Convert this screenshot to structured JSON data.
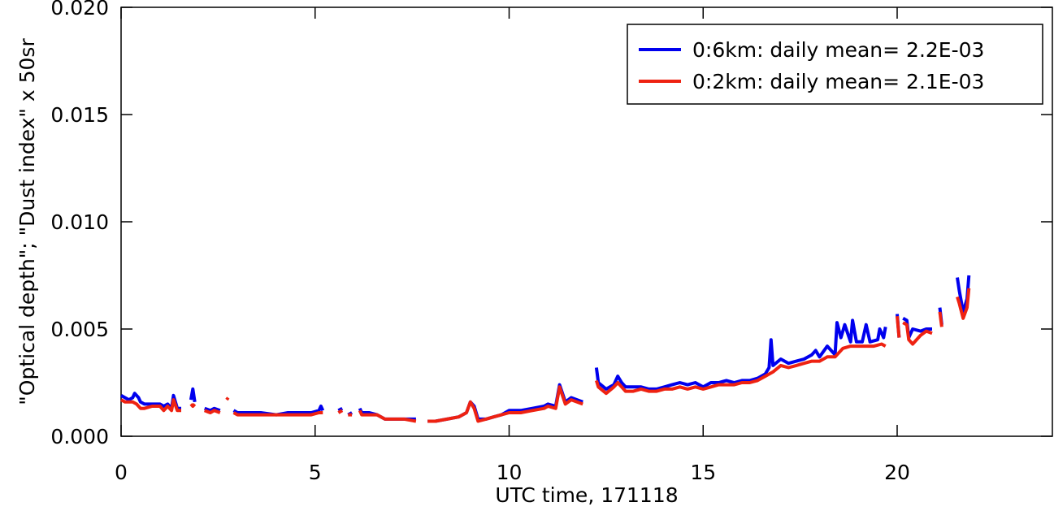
{
  "chart_data": {
    "type": "line",
    "title": "",
    "xlabel": "UTC time, 171118",
    "ylabel": "\"Optical depth\"; \"Dust index\" x 50sr",
    "xlim": [
      0,
      24
    ],
    "ylim": [
      0.0,
      0.02
    ],
    "x_ticks": [
      0,
      5,
      10,
      15,
      20
    ],
    "x_tick_labels": [
      "0",
      "5",
      "10",
      "15",
      "20"
    ],
    "y_ticks": [
      0.0,
      0.005,
      0.01,
      0.015,
      0.02
    ],
    "y_tick_labels": [
      "0.000",
      "0.005",
      "0.010",
      "0.015",
      "0.020"
    ],
    "grid": false,
    "legend_position": "top-right",
    "series": [
      {
        "name": "0:6km: daily mean= 2.2E-03",
        "color": "#0000ee",
        "segments": [
          [
            [
              0.0,
              0.0019
            ],
            [
              0.1,
              0.0018
            ],
            [
              0.2,
              0.0017
            ],
            [
              0.3,
              0.0018
            ],
            [
              0.35,
              0.002
            ],
            [
              0.45,
              0.0018
            ],
            [
              0.5,
              0.0016
            ],
            [
              0.6,
              0.0015
            ],
            [
              0.8,
              0.0015
            ],
            [
              1.0,
              0.0015
            ],
            [
              1.1,
              0.0014
            ],
            [
              1.2,
              0.0015
            ],
            [
              1.3,
              0.0013
            ],
            [
              1.35,
              0.0019
            ],
            [
              1.45,
              0.0013
            ],
            [
              1.55,
              0.0013
            ]
          ],
          [
            [
              1.8,
              0.0017
            ],
            [
              1.85,
              0.0022
            ],
            [
              1.9,
              0.0016
            ]
          ],
          [
            [
              2.15,
              0.0013
            ],
            [
              2.3,
              0.0012
            ],
            [
              2.4,
              0.0013
            ],
            [
              2.55,
              0.0012
            ]
          ],
          [
            [
              2.9,
              0.0012
            ],
            [
              3.0,
              0.0011
            ],
            [
              3.3,
              0.0011
            ],
            [
              3.6,
              0.0011
            ],
            [
              4.0,
              0.001
            ],
            [
              4.3,
              0.0011
            ],
            [
              4.6,
              0.0011
            ],
            [
              4.9,
              0.0011
            ],
            [
              5.1,
              0.0012
            ],
            [
              5.15,
              0.0014
            ],
            [
              5.2,
              0.0012
            ]
          ],
          [
            [
              5.6,
              0.0012
            ],
            [
              5.7,
              0.0013
            ]
          ],
          [
            [
              5.85,
              0.001
            ],
            [
              5.95,
              0.0011
            ]
          ],
          [
            [
              6.15,
              0.0013
            ],
            [
              6.2,
              0.0011
            ],
            [
              6.4,
              0.0011
            ],
            [
              6.6,
              0.001
            ],
            [
              6.8,
              0.0008
            ],
            [
              7.0,
              0.0008
            ],
            [
              7.3,
              0.0008
            ],
            [
              7.6,
              0.0008
            ]
          ],
          [
            [
              7.9,
              0.0007
            ],
            [
              8.1,
              0.0007
            ],
            [
              8.4,
              0.0008
            ],
            [
              8.7,
              0.0009
            ],
            [
              8.9,
              0.0011
            ],
            [
              9.0,
              0.0016
            ],
            [
              9.1,
              0.0014
            ],
            [
              9.2,
              0.0008
            ],
            [
              9.4,
              0.0008
            ],
            [
              9.6,
              0.0009
            ],
            [
              9.8,
              0.001
            ],
            [
              10.0,
              0.0012
            ],
            [
              10.3,
              0.0012
            ],
            [
              10.6,
              0.0013
            ],
            [
              10.9,
              0.0014
            ],
            [
              11.0,
              0.0015
            ],
            [
              11.2,
              0.0014
            ],
            [
              11.3,
              0.0024
            ],
            [
              11.45,
              0.0016
            ],
            [
              11.6,
              0.0018
            ],
            [
              11.9,
              0.0016
            ]
          ],
          [
            [
              12.25,
              0.0032
            ],
            [
              12.3,
              0.0025
            ],
            [
              12.5,
              0.0022
            ],
            [
              12.7,
              0.0024
            ],
            [
              12.8,
              0.0028
            ],
            [
              12.9,
              0.0025
            ],
            [
              13.0,
              0.0023
            ],
            [
              13.2,
              0.0023
            ],
            [
              13.4,
              0.0023
            ],
            [
              13.6,
              0.0022
            ],
            [
              13.8,
              0.0022
            ],
            [
              14.0,
              0.0023
            ],
            [
              14.2,
              0.0024
            ],
            [
              14.4,
              0.0025
            ],
            [
              14.6,
              0.0024
            ],
            [
              14.8,
              0.0025
            ],
            [
              15.0,
              0.0023
            ],
            [
              15.2,
              0.0025
            ],
            [
              15.4,
              0.0025
            ],
            [
              15.6,
              0.0026
            ],
            [
              15.8,
              0.0025
            ],
            [
              16.0,
              0.0026
            ],
            [
              16.2,
              0.0026
            ],
            [
              16.4,
              0.0027
            ],
            [
              16.6,
              0.0029
            ],
            [
              16.7,
              0.0032
            ],
            [
              16.75,
              0.0045
            ],
            [
              16.8,
              0.0033
            ],
            [
              17.0,
              0.0036
            ],
            [
              17.2,
              0.0034
            ],
            [
              17.4,
              0.0035
            ],
            [
              17.6,
              0.0036
            ],
            [
              17.8,
              0.0038
            ],
            [
              17.9,
              0.004
            ],
            [
              18.0,
              0.0037
            ],
            [
              18.2,
              0.0042
            ],
            [
              18.4,
              0.0038
            ],
            [
              18.45,
              0.0053
            ],
            [
              18.55,
              0.0046
            ],
            [
              18.65,
              0.0052
            ],
            [
              18.8,
              0.0044
            ],
            [
              18.85,
              0.0054
            ],
            [
              18.95,
              0.0044
            ],
            [
              19.1,
              0.0044
            ],
            [
              19.2,
              0.0052
            ],
            [
              19.3,
              0.0044
            ],
            [
              19.5,
              0.0045
            ],
            [
              19.55,
              0.005
            ],
            [
              19.65,
              0.0046
            ],
            [
              19.7,
              0.0051
            ]
          ],
          [
            [
              20.0,
              0.0057
            ],
            [
              20.05,
              0.0046
            ]
          ],
          [
            [
              20.15,
              0.0055
            ],
            [
              20.25,
              0.0054
            ],
            [
              20.3,
              0.0046
            ],
            [
              20.4,
              0.005
            ],
            [
              20.6,
              0.0049
            ],
            [
              20.75,
              0.005
            ],
            [
              20.9,
              0.005
            ]
          ],
          [
            [
              21.1,
              0.006
            ],
            [
              21.15,
              0.0052
            ]
          ],
          [
            [
              21.55,
              0.0074
            ],
            [
              21.6,
              0.0068
            ],
            [
              21.7,
              0.0058
            ],
            [
              21.8,
              0.0064
            ],
            [
              21.85,
              0.0075
            ]
          ]
        ]
      },
      {
        "name": "0:2km: daily mean= 2.1E-03",
        "color": "#ee2211",
        "segments": [
          [
            [
              0.0,
              0.0017
            ],
            [
              0.1,
              0.0016
            ],
            [
              0.2,
              0.0016
            ],
            [
              0.3,
              0.0016
            ],
            [
              0.4,
              0.0015
            ],
            [
              0.5,
              0.0013
            ],
            [
              0.6,
              0.0013
            ],
            [
              0.8,
              0.0014
            ],
            [
              1.0,
              0.0014
            ],
            [
              1.1,
              0.0012
            ],
            [
              1.2,
              0.0014
            ],
            [
              1.3,
              0.0012
            ],
            [
              1.35,
              0.0017
            ],
            [
              1.45,
              0.0012
            ],
            [
              1.55,
              0.0012
            ]
          ],
          [
            [
              1.8,
              0.0015
            ],
            [
              1.85,
              0.0014
            ],
            [
              1.9,
              0.0015
            ]
          ],
          [
            [
              2.15,
              0.0012
            ],
            [
              2.3,
              0.0011
            ],
            [
              2.4,
              0.0012
            ],
            [
              2.55,
              0.0011
            ]
          ],
          [
            [
              2.72,
              0.0017
            ],
            [
              2.76,
              0.0018
            ]
          ],
          [
            [
              2.9,
              0.0011
            ],
            [
              3.0,
              0.001
            ],
            [
              3.3,
              0.001
            ],
            [
              3.6,
              0.001
            ],
            [
              4.0,
              0.001
            ],
            [
              4.3,
              0.001
            ],
            [
              4.6,
              0.001
            ],
            [
              4.9,
              0.001
            ],
            [
              5.1,
              0.0011
            ],
            [
              5.2,
              0.0011
            ]
          ],
          [
            [
              5.6,
              0.0011
            ],
            [
              5.7,
              0.0012
            ]
          ],
          [
            [
              5.85,
              0.001
            ],
            [
              5.95,
              0.001
            ]
          ],
          [
            [
              6.15,
              0.0012
            ],
            [
              6.2,
              0.001
            ],
            [
              6.4,
              0.001
            ],
            [
              6.6,
              0.001
            ],
            [
              6.8,
              0.0008
            ],
            [
              7.0,
              0.0008
            ],
            [
              7.3,
              0.0008
            ],
            [
              7.6,
              0.0007
            ]
          ],
          [
            [
              7.9,
              0.0007
            ],
            [
              8.1,
              0.0007
            ],
            [
              8.4,
              0.0008
            ],
            [
              8.7,
              0.0009
            ],
            [
              8.9,
              0.0011
            ],
            [
              9.0,
              0.0016
            ],
            [
              9.1,
              0.0013
            ],
            [
              9.2,
              0.0007
            ],
            [
              9.4,
              0.0008
            ],
            [
              9.6,
              0.0009
            ],
            [
              9.8,
              0.001
            ],
            [
              10.0,
              0.0011
            ],
            [
              10.3,
              0.0011
            ],
            [
              10.6,
              0.0012
            ],
            [
              10.9,
              0.0013
            ],
            [
              11.0,
              0.0014
            ],
            [
              11.2,
              0.0013
            ],
            [
              11.3,
              0.0023
            ],
            [
              11.45,
              0.0015
            ],
            [
              11.6,
              0.0017
            ],
            [
              11.9,
              0.0015
            ]
          ],
          [
            [
              12.25,
              0.0026
            ],
            [
              12.3,
              0.0023
            ],
            [
              12.5,
              0.002
            ],
            [
              12.7,
              0.0023
            ],
            [
              12.8,
              0.0025
            ],
            [
              12.9,
              0.0023
            ],
            [
              13.0,
              0.0021
            ],
            [
              13.2,
              0.0021
            ],
            [
              13.4,
              0.0022
            ],
            [
              13.6,
              0.0021
            ],
            [
              13.8,
              0.0021
            ],
            [
              14.0,
              0.0022
            ],
            [
              14.2,
              0.0022
            ],
            [
              14.4,
              0.0023
            ],
            [
              14.6,
              0.0022
            ],
            [
              14.8,
              0.0023
            ],
            [
              15.0,
              0.0022
            ],
            [
              15.2,
              0.0023
            ],
            [
              15.4,
              0.0024
            ],
            [
              15.6,
              0.0024
            ],
            [
              15.8,
              0.0024
            ],
            [
              16.0,
              0.0025
            ],
            [
              16.2,
              0.0025
            ],
            [
              16.4,
              0.0026
            ],
            [
              16.6,
              0.0028
            ],
            [
              16.8,
              0.003
            ],
            [
              17.0,
              0.0033
            ],
            [
              17.2,
              0.0032
            ],
            [
              17.4,
              0.0033
            ],
            [
              17.6,
              0.0034
            ],
            [
              17.8,
              0.0035
            ],
            [
              18.0,
              0.0035
            ],
            [
              18.2,
              0.0037
            ],
            [
              18.4,
              0.0037
            ],
            [
              18.6,
              0.0041
            ],
            [
              18.8,
              0.0042
            ],
            [
              19.0,
              0.0042
            ],
            [
              19.2,
              0.0042
            ],
            [
              19.4,
              0.0042
            ],
            [
              19.6,
              0.0043
            ],
            [
              19.7,
              0.0042
            ]
          ],
          [
            [
              20.0,
              0.0056
            ],
            [
              20.05,
              0.0046
            ]
          ],
          [
            [
              20.15,
              0.0053
            ],
            [
              20.25,
              0.0052
            ],
            [
              20.3,
              0.0045
            ],
            [
              20.4,
              0.0043
            ],
            [
              20.6,
              0.0047
            ],
            [
              20.75,
              0.0049
            ],
            [
              20.9,
              0.0048
            ]
          ],
          [
            [
              21.1,
              0.0058
            ],
            [
              21.15,
              0.0051
            ]
          ],
          [
            [
              21.55,
              0.0065
            ],
            [
              21.6,
              0.0062
            ],
            [
              21.7,
              0.0055
            ],
            [
              21.8,
              0.006
            ],
            [
              21.85,
              0.0069
            ]
          ]
        ]
      }
    ]
  }
}
